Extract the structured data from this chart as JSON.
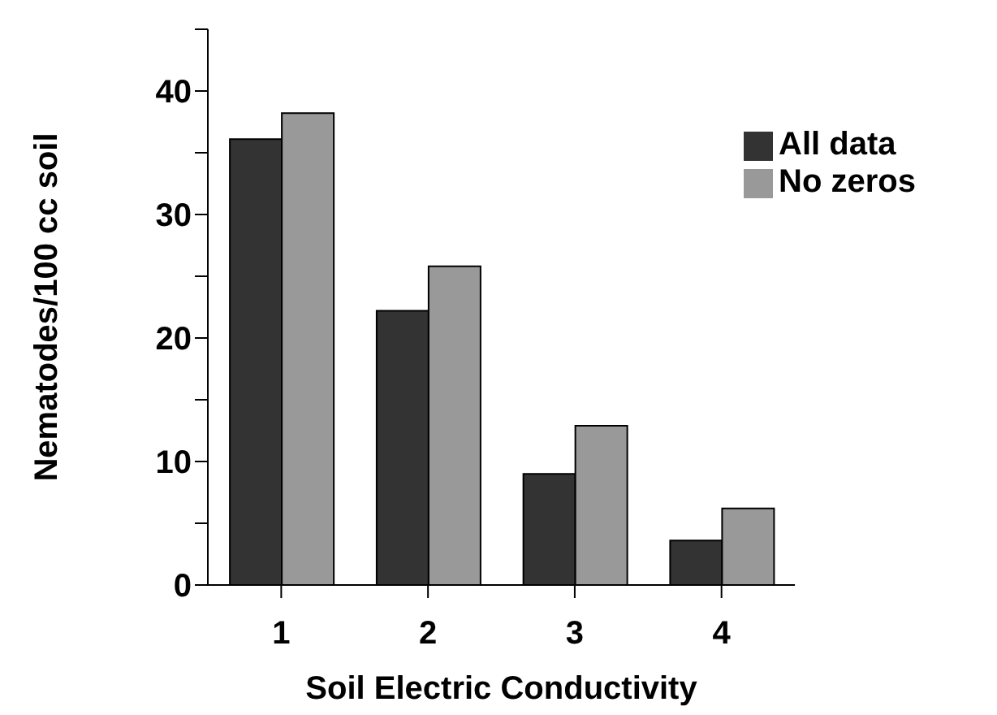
{
  "chart_data": {
    "type": "bar",
    "xlabel": "Soil Electric Conductivity",
    "ylabel": "Nematodes/100 cc soil",
    "categories": [
      "1",
      "2",
      "3",
      "4"
    ],
    "series": [
      {
        "name": "All data",
        "color": "#333333",
        "values": [
          36.1,
          22.2,
          9.0,
          3.6
        ]
      },
      {
        "name": "No zeros",
        "color": "#999999",
        "values": [
          38.2,
          25.8,
          12.9,
          6.2
        ]
      }
    ],
    "ylim": [
      0,
      45
    ],
    "yticks": [
      0,
      {
        "value": 5,
        "label": null
      },
      10,
      {
        "value": 15,
        "label": null
      },
      20,
      {
        "value": 25,
        "label": null
      },
      30,
      {
        "value": 35,
        "label": null
      },
      40,
      {
        "value": 45,
        "label": null
      }
    ],
    "grid": false,
    "legend": "top right"
  }
}
